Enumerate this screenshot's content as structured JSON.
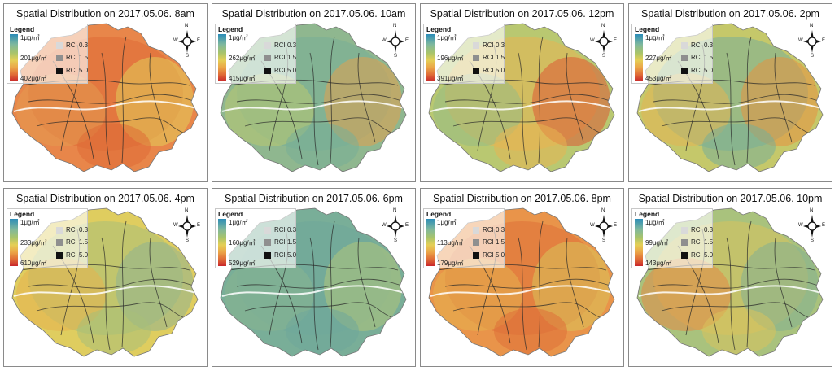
{
  "legend_common": {
    "title": "Legend",
    "min_label": "1μg/㎥",
    "rci_levels": [
      "RCI 0.3",
      "RCI 1.5",
      "RCI 5.0"
    ]
  },
  "compass": {
    "n": "N",
    "s": "S",
    "w": "W",
    "e": "E"
  },
  "colors": {
    "blue": "#2b8cb8",
    "teal": "#79ae98",
    "sage": "#98bb84",
    "olive": "#b9c871",
    "yellow": "#e2cd5a",
    "orange": "#e9944a",
    "red_orange": "#df6b36",
    "red": "#c8272b"
  },
  "panels": [
    {
      "title": "Spatial Distribution on 2017.05.06. 8am",
      "mid_label": "201μg/㎥",
      "max_label": "402μg/㎥",
      "palette": [
        "#e8864a",
        "#df6b36",
        "#e39a50",
        "#e2cd5a"
      ]
    },
    {
      "title": "Spatial Distribution on 2017.05.06. 10am",
      "mid_label": "262μg/㎥",
      "max_label": "415μg/㎥",
      "palette": [
        "#8fb78f",
        "#79ae98",
        "#b9c871",
        "#e2a04e"
      ]
    },
    {
      "title": "Spatial Distribution on 2017.05.06. 12pm",
      "mid_label": "196μg/㎥",
      "max_label": "391μg/㎥",
      "palette": [
        "#b9c871",
        "#e8b452",
        "#98bb84",
        "#dc5a34"
      ]
    },
    {
      "title": "Spatial Distribution on 2017.05.06. 2pm",
      "mid_label": "227μg/㎥",
      "max_label": "453μg/㎥",
      "palette": [
        "#c5c86a",
        "#79ae98",
        "#e2b454",
        "#e5913f"
      ]
    },
    {
      "title": "Spatial Distribution on 2017.05.06. 4pm",
      "mid_label": "233μg/㎥",
      "max_label": "610μg/㎥",
      "palette": [
        "#dfcd5f",
        "#a7bf78",
        "#e6b24f",
        "#8fb38f"
      ]
    },
    {
      "title": "Spatial Distribution on 2017.05.06. 6pm",
      "mid_label": "160μg/㎥",
      "max_label": "529μg/㎥",
      "palette": [
        "#79ae98",
        "#6fa89b",
        "#88b48f",
        "#b0c57a"
      ]
    },
    {
      "title": "Spatial Distribution on 2017.05.06. 8pm",
      "mid_label": "113μg/㎥",
      "max_label": "179μg/㎥",
      "palette": [
        "#e9944a",
        "#df7038",
        "#e6b04f",
        "#d9c35a"
      ]
    },
    {
      "title": "Spatial Distribution on 2017.05.06. 10pm",
      "mid_label": "99μg/㎥",
      "max_label": "143μg/㎥",
      "palette": [
        "#a9c27d",
        "#d8c35d",
        "#e38a45",
        "#84b091"
      ]
    }
  ]
}
